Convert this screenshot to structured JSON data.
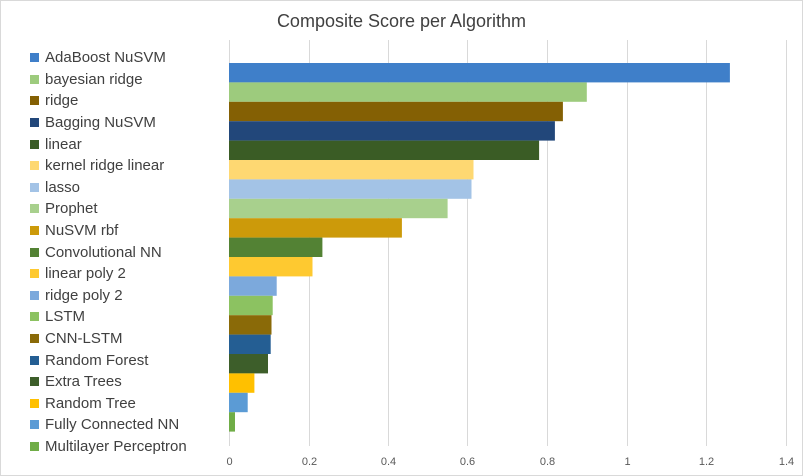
{
  "chart_data": {
    "type": "bar",
    "orientation": "horizontal",
    "title": "Composite Score per Algorithm",
    "xlabel": "",
    "ylabel": "",
    "xlim": [
      0,
      1.4
    ],
    "x_ticks": [
      "0",
      "0.2",
      "0.4",
      "0.6",
      "0.8",
      "1",
      "1.2",
      "1.4"
    ],
    "grid": true,
    "legend_position": "left",
    "series": [
      {
        "name": "AdaBoost NuSVM",
        "value": 1.26,
        "color": "#3f7fc9"
      },
      {
        "name": "bayesian ridge",
        "value": 0.9,
        "color": "#9dcb7d"
      },
      {
        "name": "ridge",
        "value": 0.84,
        "color": "#846004"
      },
      {
        "name": "Bagging NuSVM",
        "value": 0.82,
        "color": "#22477a"
      },
      {
        "name": "linear",
        "value": 0.78,
        "color": "#3a5c25"
      },
      {
        "name": "kernel ridge linear",
        "value": 0.615,
        "color": "#fed872"
      },
      {
        "name": "lasso",
        "value": 0.61,
        "color": "#a3c3e6"
      },
      {
        "name": "Prophet",
        "value": 0.55,
        "color": "#a8d08d"
      },
      {
        "name": "NuSVM rbf",
        "value": 0.435,
        "color": "#cc9a0a"
      },
      {
        "name": "Convolutional NN",
        "value": 0.235,
        "color": "#538234"
      },
      {
        "name": "linear poly 2",
        "value": 0.21,
        "color": "#fec930"
      },
      {
        "name": "ridge poly 2",
        "value": 0.12,
        "color": "#7ca9dc"
      },
      {
        "name": "LSTM",
        "value": 0.11,
        "color": "#8cc261"
      },
      {
        "name": "CNN-LSTM",
        "value": 0.107,
        "color": "#8a6a08"
      },
      {
        "name": "Random Forest",
        "value": 0.105,
        "color": "#245e93"
      },
      {
        "name": "Extra Trees",
        "value": 0.098,
        "color": "#3d5e2a"
      },
      {
        "name": "Random Tree",
        "value": 0.064,
        "color": "#ffc000"
      },
      {
        "name": "Fully Connected NN",
        "value": 0.047,
        "color": "#5b9bd5"
      },
      {
        "name": "Multilayer Perceptron",
        "value": 0.015,
        "color": "#70ad47"
      }
    ]
  }
}
